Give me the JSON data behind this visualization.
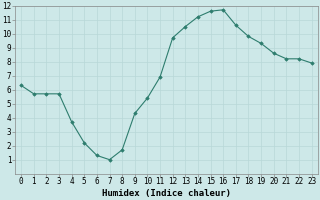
{
  "x": [
    0,
    1,
    2,
    3,
    4,
    5,
    6,
    7,
    8,
    9,
    10,
    11,
    12,
    13,
    14,
    15,
    16,
    17,
    18,
    19,
    20,
    21,
    22,
    23
  ],
  "y": [
    6.3,
    5.7,
    5.7,
    5.7,
    3.7,
    2.2,
    1.3,
    1.0,
    1.7,
    4.3,
    5.4,
    6.9,
    9.7,
    10.5,
    11.2,
    11.6,
    11.7,
    10.6,
    9.8,
    9.3,
    8.6,
    8.2,
    8.2,
    7.9
  ],
  "line_color": "#2e7d6e",
  "marker": "D",
  "marker_size": 1.8,
  "bg_color": "#cde8e8",
  "grid_color": "#b8d8d8",
  "xlabel": "Humidex (Indice chaleur)",
  "xlabel_fontsize": 6.5,
  "tick_fontsize": 5.5,
  "xlim": [
    -0.5,
    23.5
  ],
  "ylim": [
    0.0,
    12.0
  ],
  "yticks": [
    1,
    2,
    3,
    4,
    5,
    6,
    7,
    8,
    9,
    10,
    11,
    12
  ],
  "xticks": [
    0,
    1,
    2,
    3,
    4,
    5,
    6,
    7,
    8,
    9,
    10,
    11,
    12,
    13,
    14,
    15,
    16,
    17,
    18,
    19,
    20,
    21,
    22,
    23
  ],
  "xtick_labels": [
    "0",
    "1",
    "2",
    "3",
    "4",
    "5",
    "6",
    "7",
    "8",
    "9",
    "10",
    "11",
    "12",
    "13",
    "14",
    "15",
    "16",
    "17",
    "18",
    "19",
    "20",
    "21",
    "22",
    "23"
  ]
}
